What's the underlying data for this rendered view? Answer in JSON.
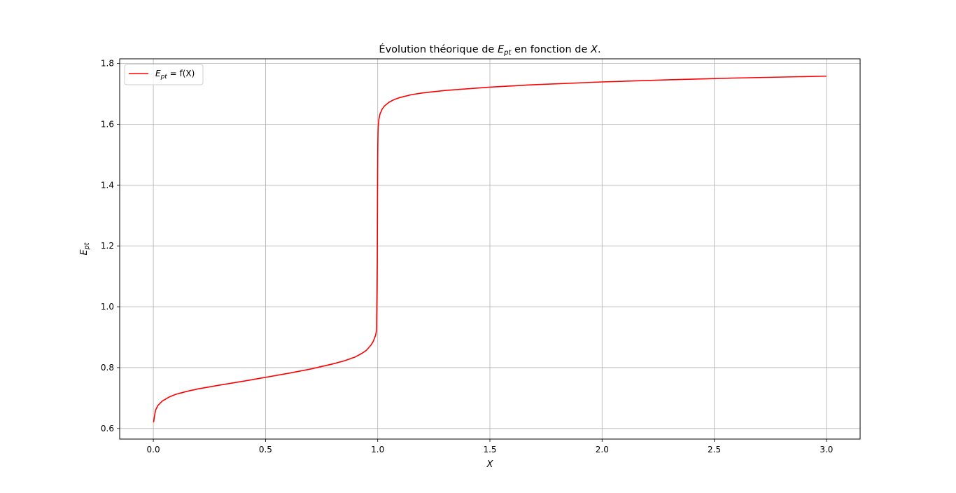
{
  "chart_data": {
    "type": "line",
    "title": {
      "prefix": "Évolution théorique de ",
      "var_base": "E",
      "var_sub": "pt",
      "middle": " en fonction de ",
      "var2": "X",
      "suffix": "."
    },
    "xlabel": "X",
    "ylabel": {
      "base": "E",
      "sub": "pt"
    },
    "xlim": [
      -0.15,
      3.15
    ],
    "ylim": [
      0.565,
      1.815
    ],
    "xticks": [
      0.0,
      0.5,
      1.0,
      1.5,
      2.0,
      2.5,
      3.0
    ],
    "yticks": [
      0.6,
      0.8,
      1.0,
      1.2,
      1.4,
      1.6,
      1.8
    ],
    "xtick_labels": [
      "0.0",
      "0.5",
      "1.0",
      "1.5",
      "2.0",
      "2.5",
      "3.0"
    ],
    "ytick_labels": [
      "0.6",
      "0.8",
      "1.0",
      "1.2",
      "1.4",
      "1.6",
      "1.8"
    ],
    "grid": true,
    "legend": {
      "placement": "top-left",
      "label": {
        "base": "E",
        "sub": "pt",
        "rest": " = f(X)"
      }
    },
    "series": [
      {
        "name": "E_pt = f(X)",
        "color": "#ff0000",
        "x": [
          0.001,
          0.005,
          0.01,
          0.02,
          0.04,
          0.07,
          0.1,
          0.15,
          0.2,
          0.3,
          0.4,
          0.5,
          0.6,
          0.7,
          0.8,
          0.85,
          0.9,
          0.93,
          0.95,
          0.97,
          0.98,
          0.99,
          0.995,
          0.998,
          0.999,
          1.0,
          1.001,
          1.002,
          1.005,
          1.01,
          1.02,
          1.03,
          1.05,
          1.07,
          1.1,
          1.15,
          1.2,
          1.3,
          1.5,
          1.7,
          2.0,
          2.3,
          2.6,
          3.0
        ],
        "y": [
          0.62,
          0.64,
          0.66,
          0.675,
          0.69,
          0.703,
          0.712,
          0.722,
          0.73,
          0.743,
          0.755,
          0.768,
          0.781,
          0.795,
          0.812,
          0.822,
          0.835,
          0.847,
          0.857,
          0.874,
          0.886,
          0.905,
          0.922,
          1.15,
          1.35,
          1.5,
          1.56,
          1.59,
          1.615,
          1.633,
          1.65,
          1.66,
          1.672,
          1.68,
          1.688,
          1.697,
          1.703,
          1.711,
          1.722,
          1.73,
          1.739,
          1.746,
          1.752,
          1.758
        ]
      }
    ]
  }
}
